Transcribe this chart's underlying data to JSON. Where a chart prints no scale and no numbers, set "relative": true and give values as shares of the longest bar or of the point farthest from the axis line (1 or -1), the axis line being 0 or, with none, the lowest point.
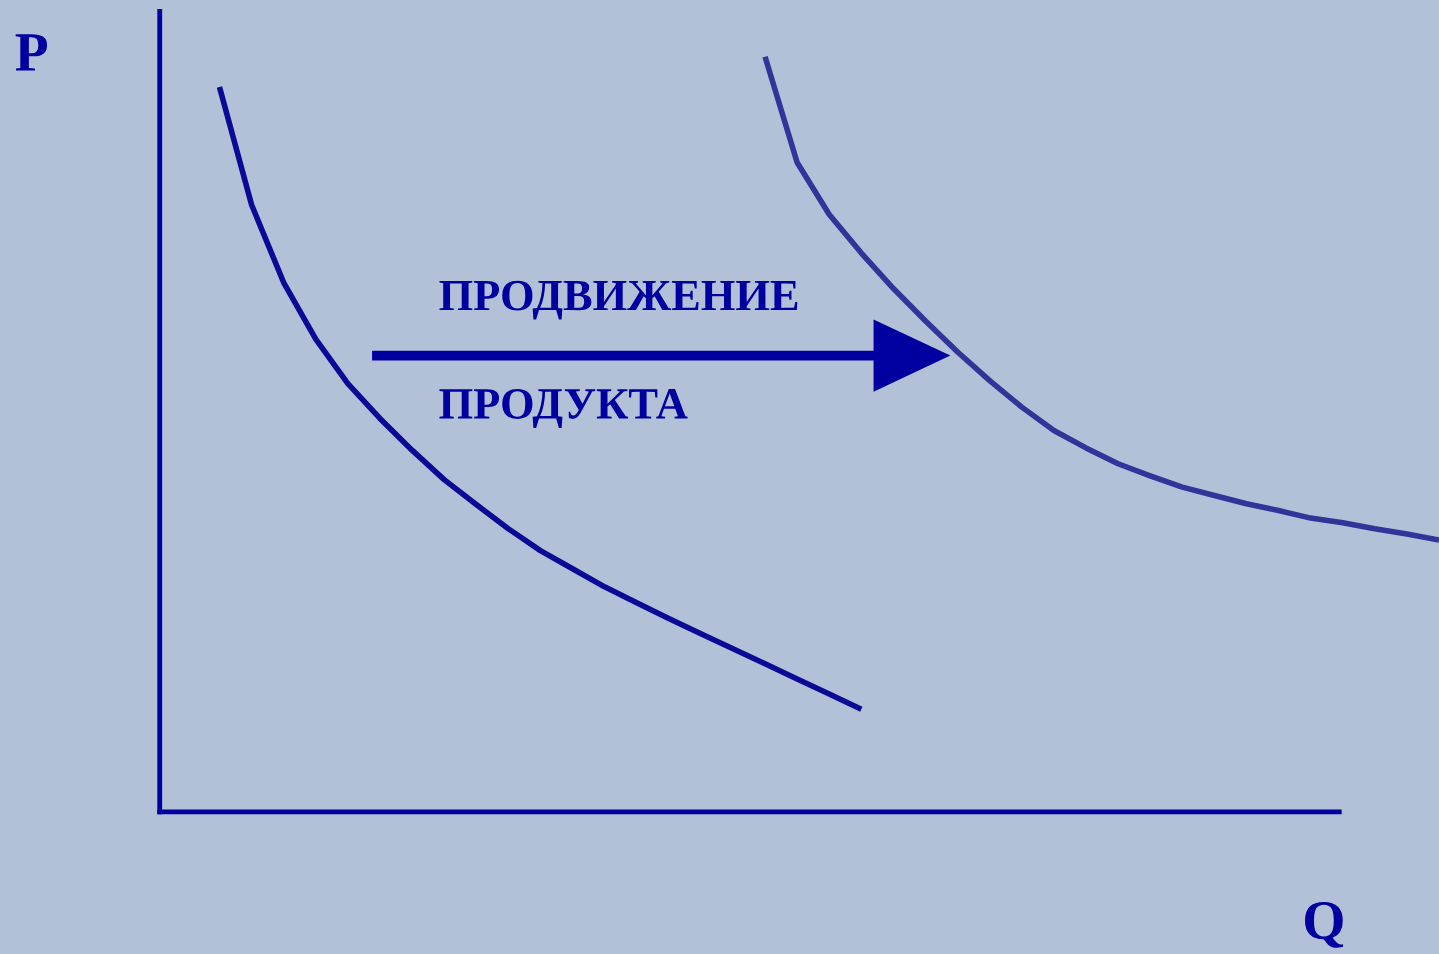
{
  "chart_data": {
    "type": "line",
    "relative": true,
    "xlabel": "Q",
    "ylabel": "P",
    "annotations": [
      "ПРОДВИЖЕНИЕ",
      "ПРОДУКТА"
    ],
    "categories": [
      null,
      null,
      null,
      null,
      null,
      null,
      null,
      null,
      null,
      null,
      null,
      null,
      null,
      null,
      null,
      null,
      null,
      null,
      null,
      null,
      null,
      null,
      null,
      null,
      null,
      null,
      null,
      null,
      null,
      null,
      null,
      null,
      null,
      null,
      null,
      null,
      null,
      null,
      null
    ],
    "series": [
      {
        "color": "#0a0a96",
        "values": [
          0.96,
          0.804,
          0.701,
          0.626,
          0.567,
          0.521,
          0.479,
          0.44,
          0.407,
          0.375,
          0.346,
          0.322,
          0.298,
          0.277,
          0.256,
          0.236,
          0.216,
          0.196,
          0.176,
          0.156,
          0.136,
          null,
          null,
          null,
          null,
          null,
          null,
          null,
          null,
          null,
          null,
          null,
          null,
          null,
          null,
          null,
          null,
          null,
          null
        ]
      },
      {
        "color": "#33339a",
        "values": [
          null,
          null,
          null,
          null,
          null,
          null,
          null,
          null,
          null,
          null,
          null,
          null,
          null,
          null,
          null,
          null,
          null,
          1.0,
          0.86,
          0.791,
          0.74,
          0.693,
          0.65,
          0.609,
          0.571,
          0.536,
          0.505,
          0.482,
          0.461,
          0.445,
          0.43,
          0.419,
          0.408,
          0.399,
          0.389,
          0.383,
          0.375,
          0.368,
          0.36
        ]
      }
    ],
    "marker": "none",
    "line_style": "solid"
  }
}
